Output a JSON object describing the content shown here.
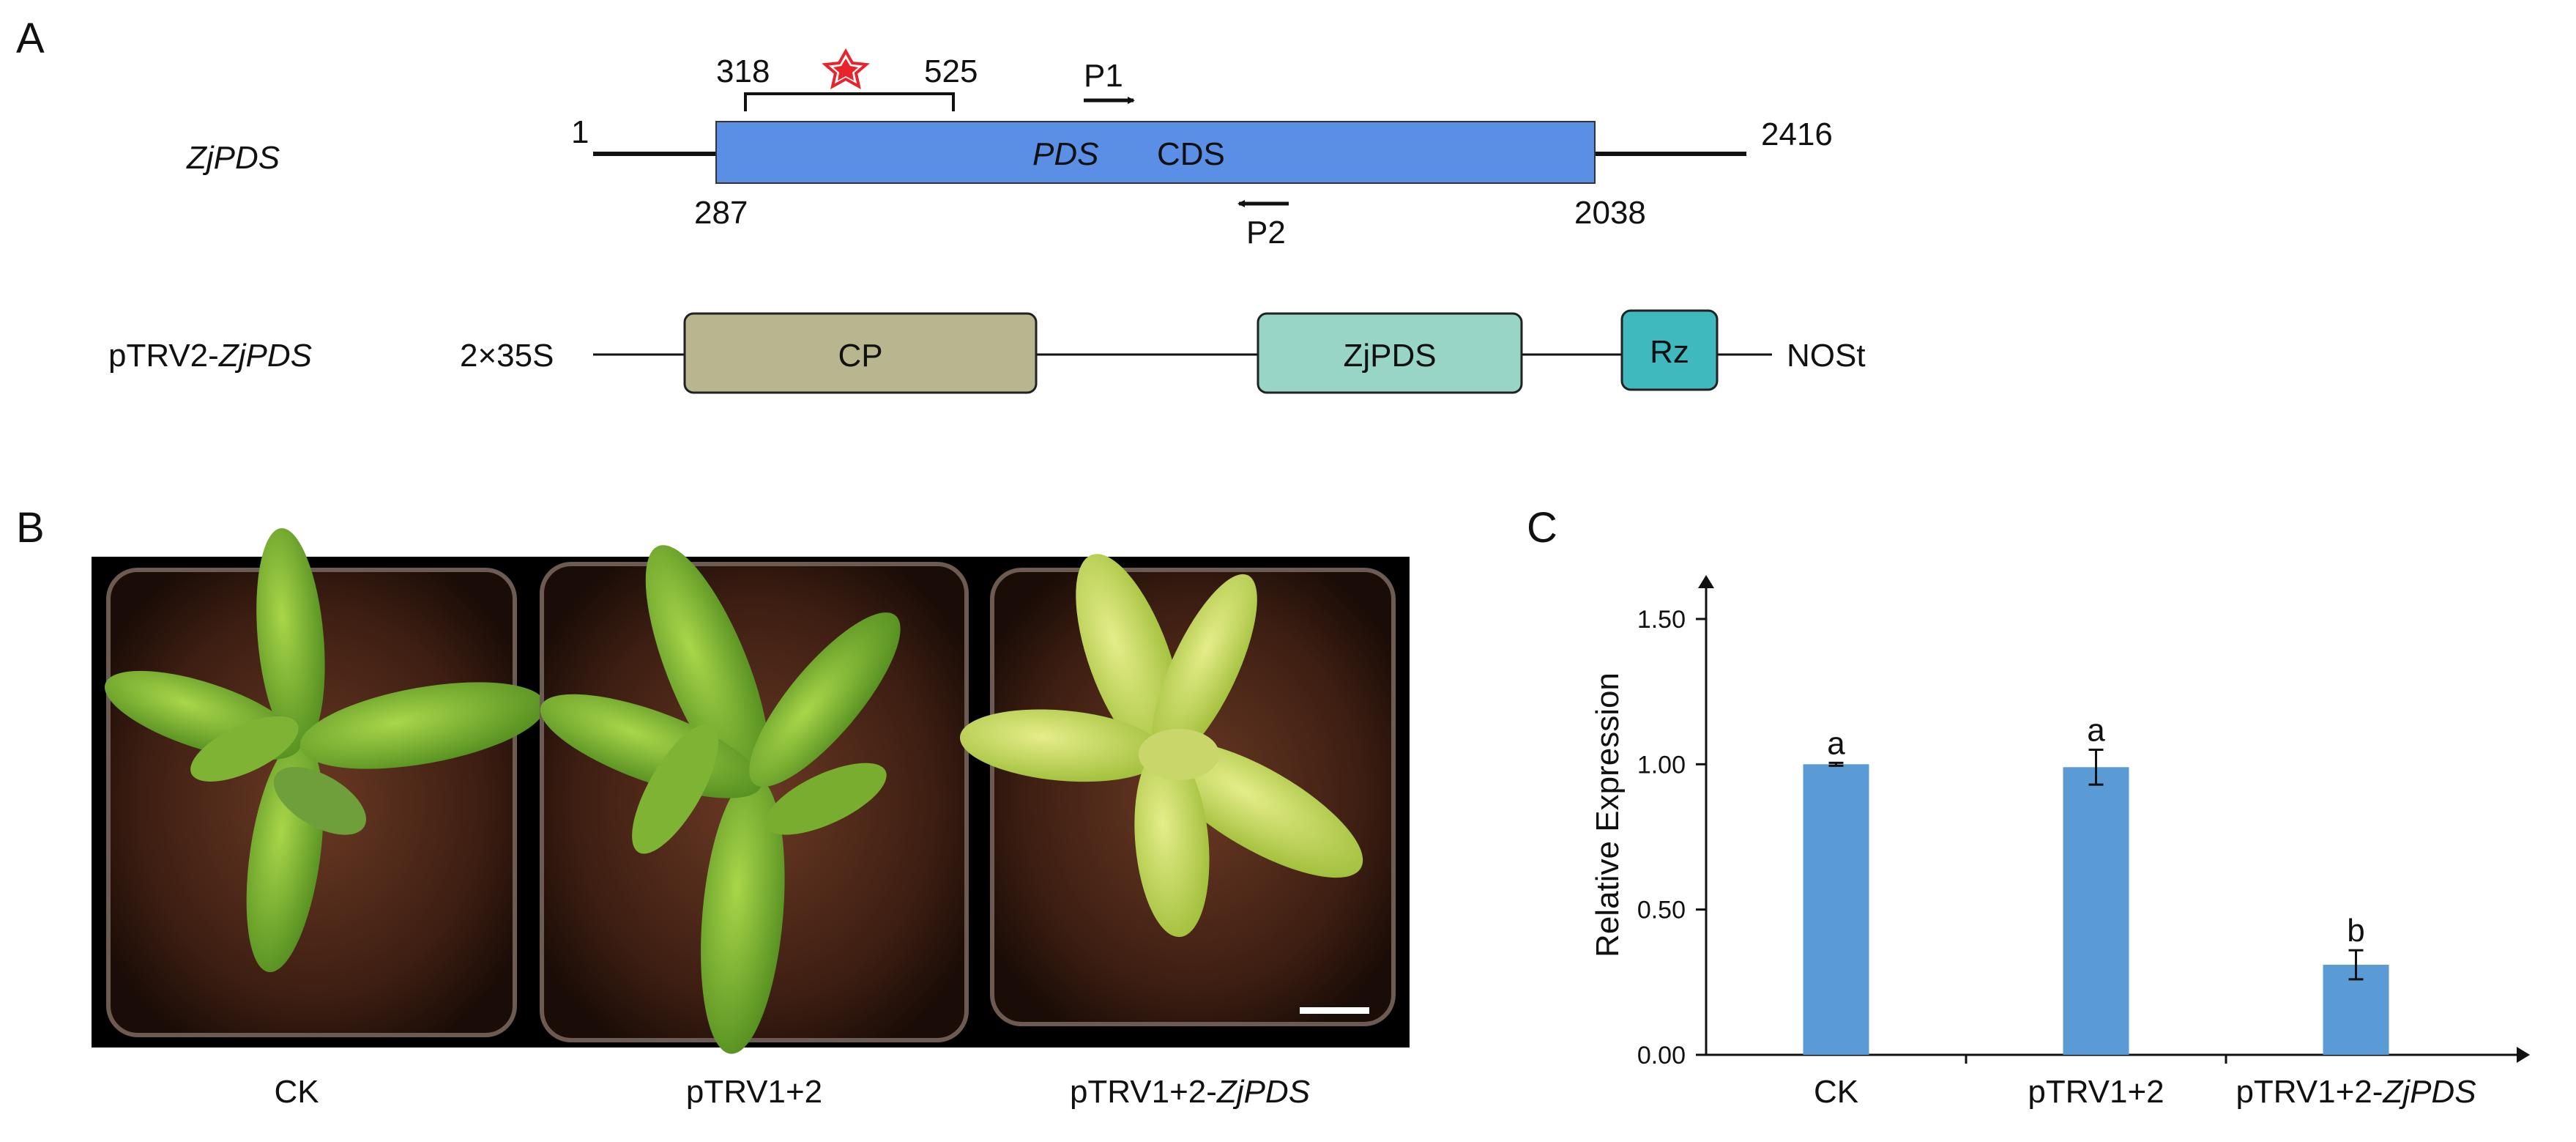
{
  "panel_a": {
    "letter": "A",
    "gene": {
      "label": "ZjPDS",
      "start": "1",
      "end": "2416",
      "cds_start": "287",
      "cds_end": "2038",
      "region_start": "318",
      "region_end": "525",
      "cds_label_italic": "PDS",
      "cds_label": "CDS",
      "primer_forward": "P1",
      "primer_reverse": "P2"
    },
    "construct": {
      "label_prefix": "pTRV2-",
      "label_italic": "ZjPDS",
      "promoter": "2×35S",
      "terminator": "NOSt",
      "boxes": [
        {
          "label": "CP",
          "color": "#b8b68e"
        },
        {
          "label": "ZjPDS",
          "color": "#99d5c6"
        },
        {
          "label": "Rz",
          "color": "#3fb8be"
        }
      ]
    },
    "colors": {
      "cds": "#5b8fe6",
      "star": "#e8232b"
    }
  },
  "panel_b": {
    "letter": "B",
    "labels": [
      {
        "text": "CK",
        "italic": ""
      },
      {
        "text": "pTRV1+2",
        "italic": ""
      },
      {
        "text": "pTRV1+2-",
        "italic": "ZjPDS"
      }
    ]
  },
  "panel_c": {
    "letter": "C",
    "chart_data": {
      "type": "bar",
      "categories": [
        "CK",
        "pTRV1+2",
        "pTRV1+2-ZjPDS"
      ],
      "values": [
        1.0,
        0.99,
        0.31
      ],
      "errors": [
        0.005,
        0.06,
        0.05
      ],
      "significance": [
        "a",
        "a",
        "b"
      ],
      "ylabel": "Relative Expression",
      "ylim": [
        0,
        1.5
      ],
      "yticks": [
        "0.00",
        "0.50",
        "1.00",
        "1.50"
      ],
      "bar_color": "#5b9bd5",
      "grid": false
    }
  }
}
